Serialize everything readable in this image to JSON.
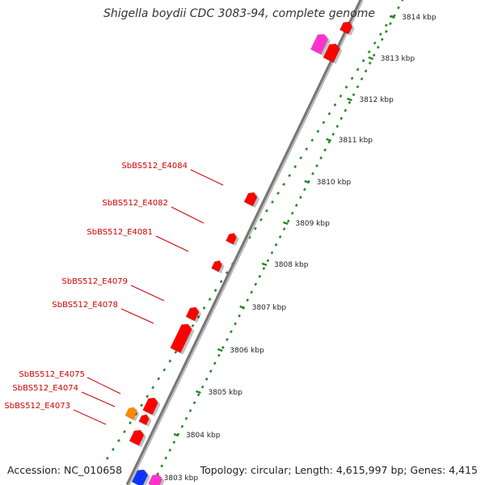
{
  "title": "Shigella boydii CDC 3083-94, complete genome",
  "footer": {
    "accession": "Accession: NC_010658",
    "topology": "Topology: circular; Length: 4,615,997 bp; Genes: 4,415"
  },
  "colors": {
    "gene_red": "#ff0000",
    "gene_magenta": "#ff33cc",
    "gene_orange": "#ff8800",
    "gene_blue": "#1133ff",
    "ruler_green": "#228822",
    "backbone": "#888888",
    "label_red": "#cc0000"
  },
  "scale": {
    "ticks": [
      {
        "label": "3803 kbp"
      },
      {
        "label": "3804 kbp"
      },
      {
        "label": "3805 kbp"
      },
      {
        "label": "3806 kbp"
      },
      {
        "label": "3807 kbp"
      },
      {
        "label": "3808 kbp"
      },
      {
        "label": "3809 kbp"
      },
      {
        "label": "3810 kbp"
      },
      {
        "label": "3811 kbp"
      },
      {
        "label": "3812 kbp"
      },
      {
        "label": "3813 kbp"
      },
      {
        "label": "3814 kbp"
      }
    ]
  },
  "gene_labels": [
    {
      "text": "SbBS512_E4084"
    },
    {
      "text": "SbBS512_E4082"
    },
    {
      "text": "SbBS512_E4081"
    },
    {
      "text": "SbBS512_E4079"
    },
    {
      "text": "SbBS512_E4078"
    },
    {
      "text": "SbBS512_E4075"
    },
    {
      "text": "SbBS512_E4074"
    },
    {
      "text": "SbBS512_E4073"
    }
  ]
}
